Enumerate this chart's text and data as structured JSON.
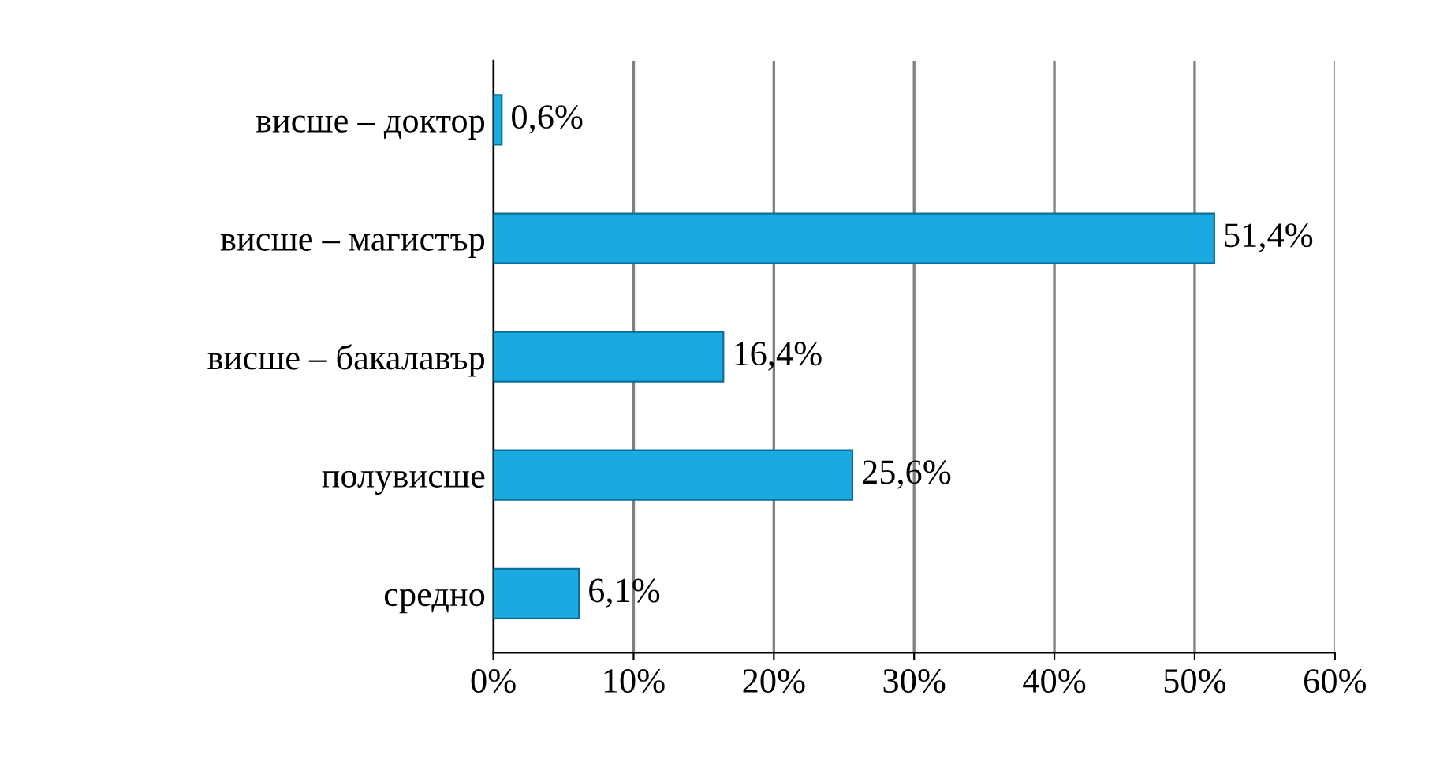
{
  "chart_data": {
    "type": "bar",
    "orientation": "horizontal",
    "categories": [
      "висше – доктор",
      "висше – магистър",
      "висше – бакалавър",
      "полувисше",
      "средно"
    ],
    "values": [
      0.6,
      51.4,
      16.4,
      25.6,
      6.1
    ],
    "value_labels": [
      "0,6%",
      "51,4%",
      "16,4%",
      "25,6%",
      "6,1%"
    ],
    "color": "#1ba9e1",
    "xlim": [
      0,
      60
    ],
    "xticks": [
      {
        "value": 0,
        "label": "0%"
      },
      {
        "value": 10,
        "label": "10%"
      },
      {
        "value": 20,
        "label": "20%"
      },
      {
        "value": 30,
        "label": "30%"
      },
      {
        "value": 40,
        "label": "40%"
      },
      {
        "value": 50,
        "label": "50%"
      },
      {
        "value": 60,
        "label": "60%"
      }
    ],
    "grid": "x"
  }
}
